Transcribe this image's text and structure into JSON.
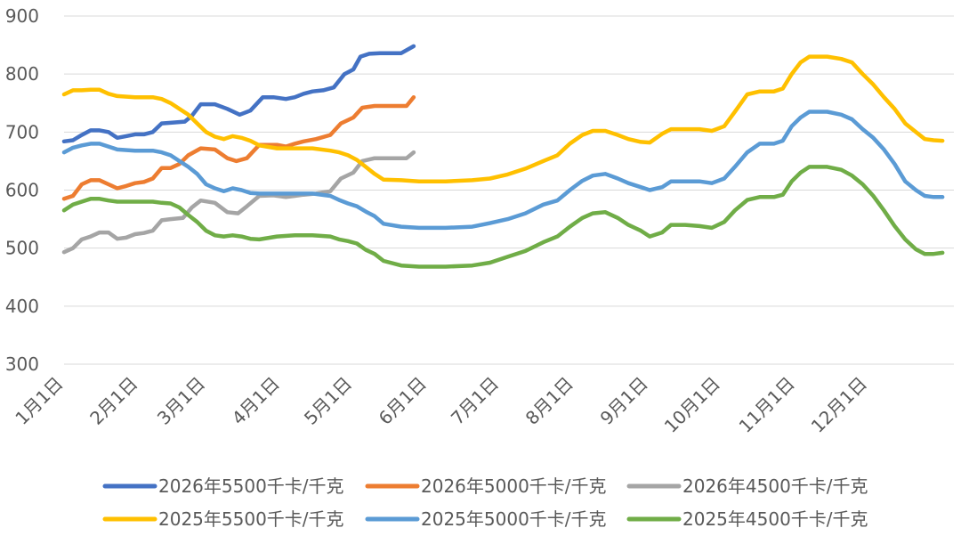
{
  "chart_data": {
    "type": "line",
    "y_ticks": [
      "300",
      "400",
      "500",
      "600",
      "700",
      "800",
      "900"
    ],
    "ylim": [
      300,
      900
    ],
    "x_ticks": [
      "1月1日",
      "2月1日",
      "3月1日",
      "4月1日",
      "5月1日",
      "6月1日",
      "7月1日",
      "8月1日",
      "9月1日",
      "10月1日",
      "11月1日",
      "12月1日"
    ],
    "x_domain_days": [
      0,
      365
    ],
    "grid": "horizontal",
    "legend_position": "bottom",
    "series": [
      {
        "name": "2026年5500千卡/千克",
        "color": "#4472C4",
        "points": [
          [
            0,
            684
          ],
          [
            5,
            686
          ],
          [
            10,
            695
          ],
          [
            15,
            703
          ],
          [
            20,
            703
          ],
          [
            25,
            700
          ],
          [
            30,
            690
          ],
          [
            35,
            693
          ],
          [
            40,
            696
          ],
          [
            45,
            696
          ],
          [
            50,
            700
          ],
          [
            55,
            715
          ],
          [
            60,
            716
          ],
          [
            68,
            718
          ],
          [
            72,
            728
          ],
          [
            77,
            748
          ],
          [
            85,
            748
          ],
          [
            92,
            740
          ],
          [
            99,
            730
          ],
          [
            105,
            737
          ],
          [
            112,
            760
          ],
          [
            118,
            760
          ],
          [
            125,
            757
          ],
          [
            130,
            760
          ],
          [
            135,
            766
          ],
          [
            140,
            770
          ],
          [
            146,
            772
          ],
          [
            152,
            777
          ],
          [
            158,
            800
          ],
          [
            163,
            808
          ],
          [
            167,
            830
          ],
          [
            172,
            835
          ],
          [
            178,
            836
          ],
          [
            184,
            836
          ],
          [
            190,
            836
          ],
          [
            197,
            848
          ]
        ]
      },
      {
        "name": "2026年5000千卡/千克",
        "color": "#ED7D31",
        "points": [
          [
            0,
            585
          ],
          [
            5,
            590
          ],
          [
            10,
            610
          ],
          [
            15,
            617
          ],
          [
            20,
            617
          ],
          [
            25,
            610
          ],
          [
            30,
            603
          ],
          [
            35,
            607
          ],
          [
            40,
            612
          ],
          [
            45,
            614
          ],
          [
            50,
            620
          ],
          [
            55,
            638
          ],
          [
            60,
            638
          ],
          [
            65,
            645
          ],
          [
            70,
            660
          ],
          [
            77,
            672
          ],
          [
            85,
            670
          ],
          [
            92,
            655
          ],
          [
            97,
            650
          ],
          [
            103,
            655
          ],
          [
            110,
            678
          ],
          [
            120,
            678
          ],
          [
            125,
            675
          ],
          [
            130,
            680
          ],
          [
            135,
            684
          ],
          [
            142,
            688
          ],
          [
            150,
            695
          ],
          [
            156,
            715
          ],
          [
            163,
            725
          ],
          [
            168,
            742
          ],
          [
            175,
            745
          ],
          [
            185,
            745
          ],
          [
            193,
            745
          ],
          [
            197,
            760
          ]
        ]
      },
      {
        "name": "2026年4500千卡/千克",
        "color": "#A5A5A5",
        "points": [
          [
            0,
            493
          ],
          [
            5,
            500
          ],
          [
            10,
            515
          ],
          [
            15,
            520
          ],
          [
            20,
            527
          ],
          [
            25,
            527
          ],
          [
            30,
            516
          ],
          [
            35,
            518
          ],
          [
            40,
            524
          ],
          [
            45,
            526
          ],
          [
            50,
            530
          ],
          [
            55,
            548
          ],
          [
            60,
            550
          ],
          [
            67,
            552
          ],
          [
            72,
            570
          ],
          [
            77,
            582
          ],
          [
            85,
            578
          ],
          [
            92,
            562
          ],
          [
            98,
            560
          ],
          [
            103,
            572
          ],
          [
            110,
            590
          ],
          [
            118,
            591
          ],
          [
            125,
            588
          ],
          [
            130,
            590
          ],
          [
            135,
            592
          ],
          [
            142,
            594
          ],
          [
            150,
            598
          ],
          [
            156,
            620
          ],
          [
            163,
            630
          ],
          [
            168,
            650
          ],
          [
            175,
            655
          ],
          [
            185,
            655
          ],
          [
            193,
            655
          ],
          [
            197,
            665
          ]
        ]
      },
      {
        "name": "2025年5500千卡/千克",
        "color": "#FFC000",
        "points": [
          [
            0,
            765
          ],
          [
            5,
            772
          ],
          [
            10,
            772
          ],
          [
            15,
            773
          ],
          [
            20,
            773
          ],
          [
            25,
            766
          ],
          [
            30,
            762
          ],
          [
            40,
            760
          ],
          [
            50,
            760
          ],
          [
            55,
            757
          ],
          [
            60,
            750
          ],
          [
            65,
            740
          ],
          [
            70,
            730
          ],
          [
            75,
            715
          ],
          [
            80,
            700
          ],
          [
            85,
            692
          ],
          [
            90,
            688
          ],
          [
            95,
            693
          ],
          [
            100,
            690
          ],
          [
            105,
            685
          ],
          [
            110,
            677
          ],
          [
            120,
            672
          ],
          [
            130,
            672
          ],
          [
            140,
            672
          ],
          [
            150,
            668
          ],
          [
            155,
            665
          ],
          [
            160,
            660
          ],
          [
            165,
            652
          ],
          [
            170,
            640
          ],
          [
            175,
            628
          ],
          [
            180,
            618
          ],
          [
            190,
            617
          ],
          [
            200,
            615
          ],
          [
            215,
            615
          ],
          [
            230,
            617
          ],
          [
            240,
            620
          ],
          [
            250,
            627
          ],
          [
            260,
            637
          ],
          [
            270,
            650
          ],
          [
            278,
            660
          ],
          [
            285,
            680
          ],
          [
            292,
            695
          ],
          [
            298,
            702
          ],
          [
            305,
            702
          ],
          [
            312,
            695
          ],
          [
            318,
            688
          ],
          [
            325,
            683
          ],
          [
            330,
            682
          ],
          [
            337,
            697
          ],
          [
            342,
            705
          ],
          [
            350,
            705
          ],
          [
            358,
            705
          ],
          [
            365,
            702
          ],
          [
            372,
            710
          ],
          [
            378,
            735
          ],
          [
            385,
            765
          ],
          [
            392,
            770
          ],
          [
            400,
            770
          ],
          [
            405,
            775
          ],
          [
            410,
            800
          ],
          [
            415,
            820
          ],
          [
            420,
            830
          ],
          [
            430,
            830
          ],
          [
            438,
            826
          ],
          [
            444,
            820
          ],
          [
            450,
            800
          ],
          [
            456,
            782
          ],
          [
            462,
            760
          ],
          [
            468,
            740
          ],
          [
            474,
            715
          ],
          [
            480,
            700
          ],
          [
            485,
            688
          ],
          [
            490,
            686
          ],
          [
            495,
            685
          ]
        ]
      },
      {
        "name": "2025年5000千卡/千克",
        "color": "#5B9BD5",
        "points": [
          [
            0,
            665
          ],
          [
            5,
            673
          ],
          [
            10,
            677
          ],
          [
            15,
            680
          ],
          [
            20,
            680
          ],
          [
            25,
            675
          ],
          [
            30,
            670
          ],
          [
            40,
            668
          ],
          [
            50,
            668
          ],
          [
            55,
            665
          ],
          [
            60,
            660
          ],
          [
            65,
            650
          ],
          [
            70,
            640
          ],
          [
            75,
            628
          ],
          [
            80,
            610
          ],
          [
            85,
            603
          ],
          [
            90,
            598
          ],
          [
            95,
            603
          ],
          [
            100,
            600
          ],
          [
            105,
            595
          ],
          [
            110,
            594
          ],
          [
            120,
            594
          ],
          [
            130,
            594
          ],
          [
            140,
            594
          ],
          [
            150,
            590
          ],
          [
            155,
            583
          ],
          [
            160,
            577
          ],
          [
            165,
            572
          ],
          [
            170,
            563
          ],
          [
            175,
            555
          ],
          [
            180,
            542
          ],
          [
            190,
            537
          ],
          [
            200,
            535
          ],
          [
            215,
            535
          ],
          [
            230,
            537
          ],
          [
            240,
            543
          ],
          [
            250,
            550
          ],
          [
            260,
            560
          ],
          [
            270,
            575
          ],
          [
            278,
            582
          ],
          [
            285,
            600
          ],
          [
            292,
            616
          ],
          [
            298,
            625
          ],
          [
            305,
            628
          ],
          [
            312,
            620
          ],
          [
            318,
            612
          ],
          [
            325,
            605
          ],
          [
            330,
            600
          ],
          [
            337,
            605
          ],
          [
            342,
            615
          ],
          [
            350,
            615
          ],
          [
            358,
            615
          ],
          [
            365,
            612
          ],
          [
            372,
            620
          ],
          [
            378,
            640
          ],
          [
            385,
            665
          ],
          [
            392,
            680
          ],
          [
            400,
            680
          ],
          [
            405,
            685
          ],
          [
            410,
            710
          ],
          [
            415,
            725
          ],
          [
            420,
            735
          ],
          [
            430,
            735
          ],
          [
            438,
            730
          ],
          [
            444,
            722
          ],
          [
            450,
            705
          ],
          [
            456,
            690
          ],
          [
            462,
            670
          ],
          [
            468,
            645
          ],
          [
            474,
            615
          ],
          [
            480,
            600
          ],
          [
            485,
            590
          ],
          [
            490,
            588
          ],
          [
            495,
            588
          ]
        ]
      },
      {
        "name": "2025年4500千卡/千克",
        "color": "#70AD47",
        "points": [
          [
            0,
            565
          ],
          [
            5,
            575
          ],
          [
            10,
            580
          ],
          [
            15,
            585
          ],
          [
            20,
            585
          ],
          [
            25,
            582
          ],
          [
            30,
            580
          ],
          [
            40,
            580
          ],
          [
            50,
            580
          ],
          [
            55,
            578
          ],
          [
            60,
            577
          ],
          [
            65,
            570
          ],
          [
            70,
            557
          ],
          [
            75,
            545
          ],
          [
            80,
            530
          ],
          [
            85,
            522
          ],
          [
            90,
            520
          ],
          [
            95,
            522
          ],
          [
            100,
            520
          ],
          [
            105,
            516
          ],
          [
            110,
            515
          ],
          [
            120,
            520
          ],
          [
            130,
            522
          ],
          [
            140,
            522
          ],
          [
            150,
            520
          ],
          [
            155,
            515
          ],
          [
            160,
            512
          ],
          [
            165,
            508
          ],
          [
            170,
            497
          ],
          [
            175,
            490
          ],
          [
            180,
            478
          ],
          [
            190,
            470
          ],
          [
            200,
            468
          ],
          [
            215,
            468
          ],
          [
            230,
            470
          ],
          [
            240,
            475
          ],
          [
            250,
            485
          ],
          [
            260,
            495
          ],
          [
            270,
            510
          ],
          [
            278,
            520
          ],
          [
            285,
            537
          ],
          [
            292,
            552
          ],
          [
            298,
            560
          ],
          [
            305,
            562
          ],
          [
            312,
            552
          ],
          [
            318,
            540
          ],
          [
            325,
            530
          ],
          [
            330,
            520
          ],
          [
            337,
            527
          ],
          [
            342,
            540
          ],
          [
            350,
            540
          ],
          [
            358,
            538
          ],
          [
            365,
            535
          ],
          [
            372,
            545
          ],
          [
            378,
            565
          ],
          [
            385,
            583
          ],
          [
            392,
            588
          ],
          [
            400,
            588
          ],
          [
            405,
            592
          ],
          [
            410,
            615
          ],
          [
            415,
            630
          ],
          [
            420,
            640
          ],
          [
            430,
            640
          ],
          [
            438,
            635
          ],
          [
            444,
            625
          ],
          [
            450,
            610
          ],
          [
            456,
            590
          ],
          [
            462,
            565
          ],
          [
            468,
            538
          ],
          [
            474,
            515
          ],
          [
            480,
            498
          ],
          [
            485,
            490
          ],
          [
            490,
            490
          ],
          [
            495,
            492
          ]
        ]
      }
    ]
  }
}
